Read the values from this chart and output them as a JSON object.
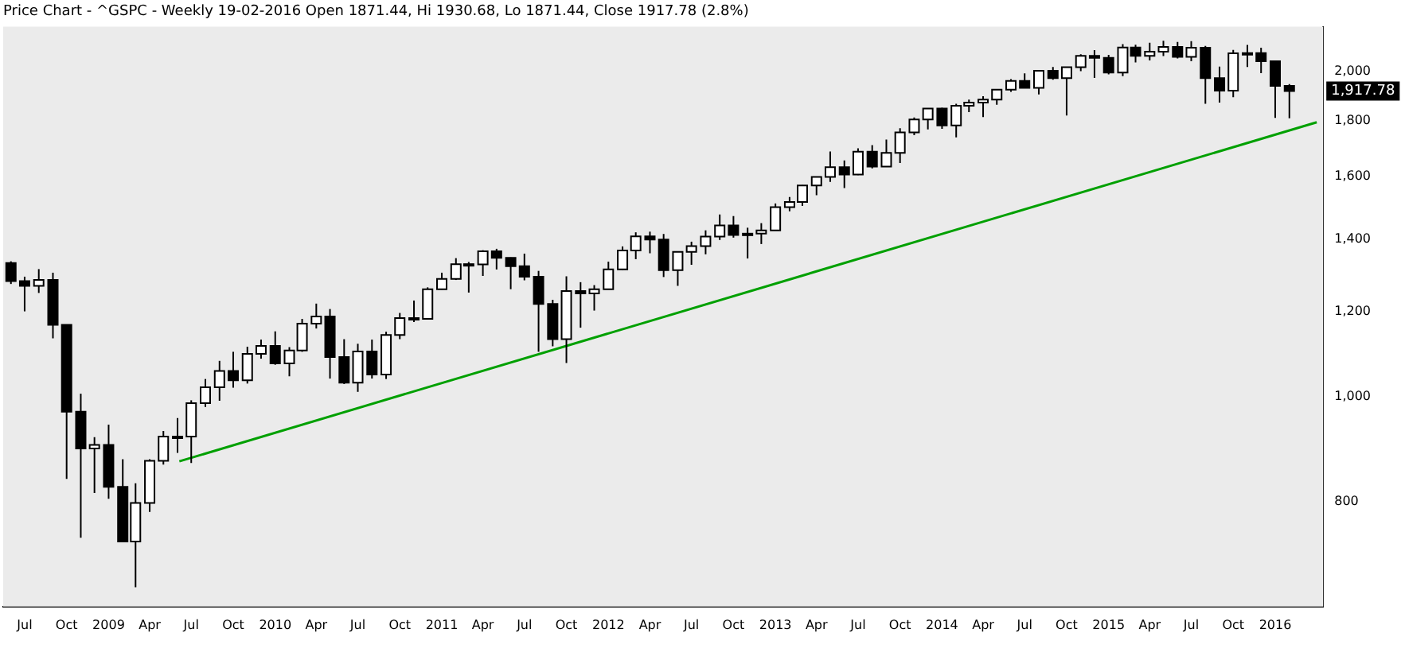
{
  "chart_data": {
    "type": "candlestick",
    "title": "Price Chart - ^GSPC - Weekly 19-02-2016 Open 1871.44, Hi 1930.68, Lo 1871.44, Close 1917.78 (2.8%)",
    "x": [
      "2008-06",
      "2008-07",
      "2008-08",
      "2008-09",
      "2008-10",
      "2008-11",
      "2008-12",
      "2009-01",
      "2009-02",
      "2009-03",
      "2009-04",
      "2009-05",
      "2009-06",
      "2009-07",
      "2009-08",
      "2009-09",
      "2009-10",
      "2009-11",
      "2009-12",
      "2010-01",
      "2010-02",
      "2010-03",
      "2010-04",
      "2010-05",
      "2010-06",
      "2010-07",
      "2010-08",
      "2010-09",
      "2010-10",
      "2010-11",
      "2010-12",
      "2011-01",
      "2011-02",
      "2011-03",
      "2011-04",
      "2011-05",
      "2011-06",
      "2011-07",
      "2011-08",
      "2011-09",
      "2011-10",
      "2011-11",
      "2011-12",
      "2012-01",
      "2012-02",
      "2012-03",
      "2012-04",
      "2012-05",
      "2012-06",
      "2012-07",
      "2012-08",
      "2012-09",
      "2012-10",
      "2012-11",
      "2012-12",
      "2013-01",
      "2013-02",
      "2013-03",
      "2013-04",
      "2013-05",
      "2013-06",
      "2013-07",
      "2013-08",
      "2013-09",
      "2013-10",
      "2013-11",
      "2013-12",
      "2014-01",
      "2014-02",
      "2014-03",
      "2014-04",
      "2014-05",
      "2014-06",
      "2014-07",
      "2014-08",
      "2014-09",
      "2014-10",
      "2014-11",
      "2014-12",
      "2015-01",
      "2015-02",
      "2015-03",
      "2015-04",
      "2015-05",
      "2015-06",
      "2015-07",
      "2015-08",
      "2015-09",
      "2015-10",
      "2015-11",
      "2015-12",
      "2016-01",
      "2016-02"
    ],
    "ohlc": [
      [
        1330,
        1335,
        1272,
        1280
      ],
      [
        1280,
        1292,
        1200,
        1267
      ],
      [
        1267,
        1313,
        1248,
        1283
      ],
      [
        1283,
        1303,
        1133,
        1166
      ],
      [
        1166,
        1167,
        840,
        969
      ],
      [
        969,
        1007,
        741,
        896
      ],
      [
        896,
        918,
        815,
        903
      ],
      [
        903,
        943,
        805,
        826
      ],
      [
        826,
        876,
        735,
        735
      ],
      [
        735,
        832,
        667,
        798
      ],
      [
        798,
        876,
        783,
        873
      ],
      [
        873,
        930,
        866,
        919
      ],
      [
        919,
        956,
        888,
        919
      ],
      [
        919,
        993,
        869,
        987
      ],
      [
        987,
        1039,
        979,
        1021
      ],
      [
        1021,
        1080,
        992,
        1057
      ],
      [
        1057,
        1101,
        1020,
        1036
      ],
      [
        1036,
        1113,
        1029,
        1096
      ],
      [
        1096,
        1130,
        1085,
        1115
      ],
      [
        1115,
        1150,
        1071,
        1074
      ],
      [
        1074,
        1112,
        1045,
        1104
      ],
      [
        1104,
        1181,
        1101,
        1169
      ],
      [
        1169,
        1220,
        1157,
        1187
      ],
      [
        1187,
        1206,
        1040,
        1089
      ],
      [
        1089,
        1131,
        1028,
        1031
      ],
      [
        1031,
        1120,
        1011,
        1102
      ],
      [
        1102,
        1130,
        1040,
        1049
      ],
      [
        1049,
        1149,
        1039,
        1141
      ],
      [
        1141,
        1196,
        1131,
        1183
      ],
      [
        1183,
        1228,
        1173,
        1181
      ],
      [
        1181,
        1263,
        1181,
        1258
      ],
      [
        1258,
        1303,
        1257,
        1286
      ],
      [
        1286,
        1344,
        1283,
        1327
      ],
      [
        1327,
        1333,
        1249,
        1326
      ],
      [
        1326,
        1367,
        1294,
        1364
      ],
      [
        1364,
        1371,
        1312,
        1345
      ],
      [
        1345,
        1346,
        1258,
        1321
      ],
      [
        1321,
        1357,
        1282,
        1292
      ],
      [
        1292,
        1308,
        1101,
        1219
      ],
      [
        1219,
        1230,
        1114,
        1131
      ],
      [
        1131,
        1293,
        1075,
        1253
      ],
      [
        1253,
        1277,
        1159,
        1247
      ],
      [
        1247,
        1269,
        1202,
        1258
      ],
      [
        1258,
        1334,
        1258,
        1312
      ],
      [
        1312,
        1378,
        1311,
        1366
      ],
      [
        1366,
        1420,
        1341,
        1408
      ],
      [
        1408,
        1422,
        1358,
        1398
      ],
      [
        1398,
        1415,
        1291,
        1310
      ],
      [
        1310,
        1363,
        1267,
        1362
      ],
      [
        1362,
        1392,
        1325,
        1379
      ],
      [
        1379,
        1426,
        1355,
        1407
      ],
      [
        1407,
        1475,
        1397,
        1441
      ],
      [
        1441,
        1470,
        1404,
        1412
      ],
      [
        1412,
        1434,
        1343,
        1416
      ],
      [
        1416,
        1448,
        1385,
        1426
      ],
      [
        1426,
        1510,
        1426,
        1498
      ],
      [
        1498,
        1531,
        1485,
        1515
      ],
      [
        1515,
        1570,
        1502,
        1569
      ],
      [
        1569,
        1598,
        1537,
        1598
      ],
      [
        1598,
        1687,
        1581,
        1631
      ],
      [
        1631,
        1655,
        1560,
        1606
      ],
      [
        1606,
        1698,
        1604,
        1686
      ],
      [
        1686,
        1710,
        1627,
        1633
      ],
      [
        1633,
        1730,
        1633,
        1682
      ],
      [
        1682,
        1772,
        1646,
        1757
      ],
      [
        1757,
        1813,
        1746,
        1806
      ],
      [
        1806,
        1849,
        1768,
        1848
      ],
      [
        1848,
        1851,
        1770,
        1783
      ],
      [
        1783,
        1867,
        1738,
        1859
      ],
      [
        1859,
        1884,
        1834,
        1872
      ],
      [
        1872,
        1897,
        1815,
        1884
      ],
      [
        1884,
        1924,
        1863,
        1924
      ],
      [
        1924,
        1968,
        1915,
        1960
      ],
      [
        1960,
        1992,
        1931,
        1931
      ],
      [
        1931,
        2005,
        1905,
        2003
      ],
      [
        2003,
        2019,
        1965,
        1972
      ],
      [
        1972,
        2018,
        1821,
        2018
      ],
      [
        2018,
        2075,
        2001,
        2068
      ],
      [
        2068,
        2093,
        1973,
        2059
      ],
      [
        2059,
        2072,
        1988,
        1995
      ],
      [
        1995,
        2120,
        1980,
        2105
      ],
      [
        2105,
        2117,
        2039,
        2068
      ],
      [
        2068,
        2126,
        2048,
        2086
      ],
      [
        2086,
        2135,
        2067,
        2107
      ],
      [
        2107,
        2130,
        2056,
        2063
      ],
      [
        2063,
        2133,
        2044,
        2104
      ],
      [
        2104,
        2112,
        1867,
        1972
      ],
      [
        1972,
        2021,
        1872,
        1920
      ],
      [
        1920,
        2094,
        1893,
        2079
      ],
      [
        2079,
        2116,
        2019,
        2080
      ],
      [
        2080,
        2104,
        1993,
        2044
      ],
      [
        2044,
        2044,
        1812,
        1940
      ],
      [
        1940,
        1947,
        1810,
        1918
      ]
    ],
    "series": [
      {
        "type": "line",
        "x": [
          "2009-06-05",
          "2016-04-01"
        ],
        "values": [
          872,
          1795
        ],
        "color": "#00a000"
      }
    ],
    "xlim": [
      "2008-05-15",
      "2016-04-15"
    ],
    "xticks": [
      {
        "value": "2008-07",
        "label": "Jul"
      },
      {
        "value": "2008-10",
        "label": "Oct"
      },
      {
        "value": "2009-01",
        "label": "2009"
      },
      {
        "value": "2009-04",
        "label": "Apr"
      },
      {
        "value": "2009-07",
        "label": "Jul"
      },
      {
        "value": "2009-10",
        "label": "Oct"
      },
      {
        "value": "2010-01",
        "label": "2010"
      },
      {
        "value": "2010-04",
        "label": "Apr"
      },
      {
        "value": "2010-07",
        "label": "Jul"
      },
      {
        "value": "2010-10",
        "label": "Oct"
      },
      {
        "value": "2011-01",
        "label": "2011"
      },
      {
        "value": "2011-04",
        "label": "Apr"
      },
      {
        "value": "2011-07",
        "label": "Jul"
      },
      {
        "value": "2011-10",
        "label": "Oct"
      },
      {
        "value": "2012-01",
        "label": "2012"
      },
      {
        "value": "2012-04",
        "label": "Apr"
      },
      {
        "value": "2012-07",
        "label": "Jul"
      },
      {
        "value": "2012-10",
        "label": "Oct"
      },
      {
        "value": "2013-01",
        "label": "2013"
      },
      {
        "value": "2013-04",
        "label": "Apr"
      },
      {
        "value": "2013-07",
        "label": "Jul"
      },
      {
        "value": "2013-10",
        "label": "Oct"
      },
      {
        "value": "2014-01",
        "label": "2014"
      },
      {
        "value": "2014-04",
        "label": "Apr"
      },
      {
        "value": "2014-07",
        "label": "Jul"
      },
      {
        "value": "2014-10",
        "label": "Oct"
      },
      {
        "value": "2015-01",
        "label": "2015"
      },
      {
        "value": "2015-04",
        "label": "Apr"
      },
      {
        "value": "2015-07",
        "label": "Jul"
      },
      {
        "value": "2015-10",
        "label": "Oct"
      },
      {
        "value": "2016-01",
        "label": "2016"
      }
    ],
    "ylim": [
      640,
      2200
    ],
    "yticks": [
      {
        "value": 800,
        "label": "800"
      },
      {
        "value": 1000,
        "label": "1,000"
      },
      {
        "value": 1200,
        "label": "1,200"
      },
      {
        "value": 1400,
        "label": "1,400"
      },
      {
        "value": 1600,
        "label": "1,600"
      },
      {
        "value": 1800,
        "label": "1,800"
      },
      {
        "value": 2000,
        "label": "2,000"
      }
    ],
    "log": true,
    "grid": false,
    "legend": false,
    "annotations": [
      "1,917.78"
    ]
  }
}
